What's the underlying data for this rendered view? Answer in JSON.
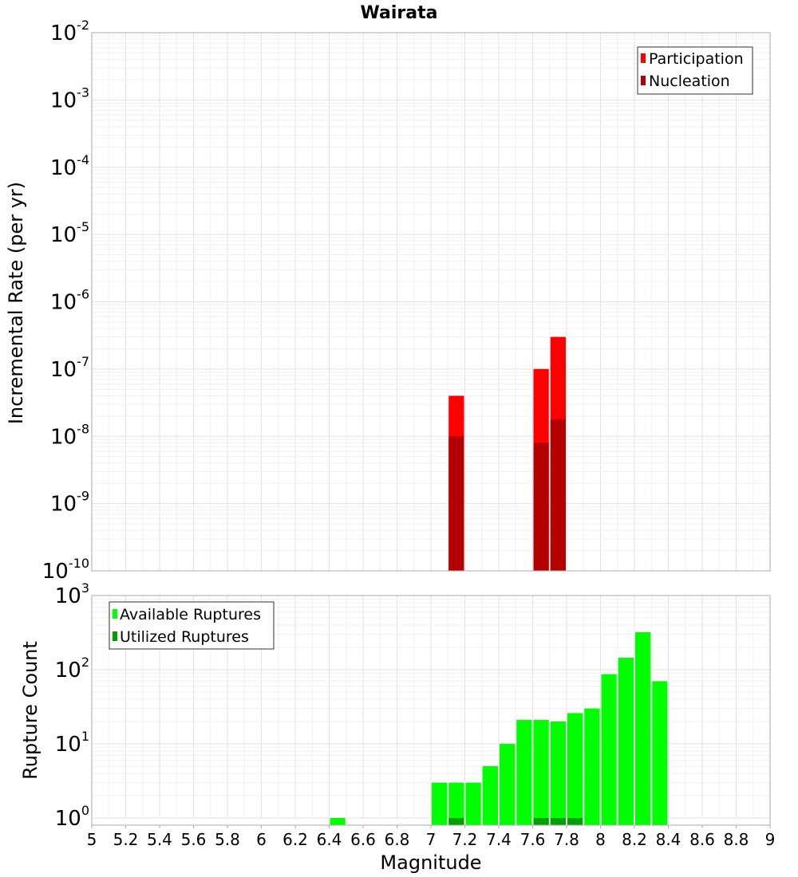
{
  "title": "Wairata",
  "colors": {
    "participation": "#ff0000",
    "nucleation": "#b30000",
    "available": "#00ff00",
    "utilized": "#00a000",
    "grid_major": "#e2e2e2",
    "grid_minor": "#f0f0f0",
    "frame": "#aaaaaa"
  },
  "chart_data": [
    {
      "type": "bar",
      "scale": "log",
      "title": "Wairata",
      "xlabel": "",
      "ylabel": "Incremental Rate (per yr)",
      "xlim": [
        5,
        9
      ],
      "ylim_exponents": [
        -10,
        -2
      ],
      "grid": true,
      "legend_placement": "top-right",
      "bin_width": 0.1,
      "series": [
        {
          "name": "Participation",
          "color": "#ff0000",
          "x": [
            7.15,
            7.65,
            7.75
          ],
          "values": [
            4e-08,
            1e-07,
            3e-07
          ]
        },
        {
          "name": "Nucleation",
          "color": "#b30000",
          "x": [
            7.15,
            7.65,
            7.75
          ],
          "values": [
            1e-08,
            8e-09,
            1.8e-08
          ]
        }
      ]
    },
    {
      "type": "bar",
      "scale": "log",
      "title": "",
      "xlabel": "Magnitude",
      "ylabel": "Rupture Count",
      "xlim": [
        5,
        9
      ],
      "ylim_exponents": [
        0,
        3
      ],
      "grid": true,
      "legend_placement": "top-left",
      "bin_width": 0.1,
      "xticks": [
        "5",
        "5.2",
        "5.4",
        "5.6",
        "5.8",
        "6",
        "6.2",
        "6.4",
        "6.6",
        "6.8",
        "7",
        "7.2",
        "7.4",
        "7.6",
        "7.8",
        "8",
        "8.2",
        "8.4",
        "8.6",
        "8.8",
        "9"
      ],
      "series": [
        {
          "name": "Available Ruptures",
          "color": "#00ff00",
          "x": [
            6.45,
            7.05,
            7.15,
            7.25,
            7.35,
            7.45,
            7.55,
            7.65,
            7.75,
            7.85,
            7.95,
            8.05,
            8.15,
            8.25,
            8.35
          ],
          "values": [
            1,
            3,
            3,
            3,
            5,
            10,
            21,
            21,
            20,
            26,
            30,
            87,
            145,
            320,
            70
          ]
        },
        {
          "name": "Utilized Ruptures",
          "color": "#00a000",
          "x": [
            7.15,
            7.65,
            7.75,
            7.85
          ],
          "values": [
            1,
            1,
            1,
            1
          ]
        }
      ]
    }
  ]
}
